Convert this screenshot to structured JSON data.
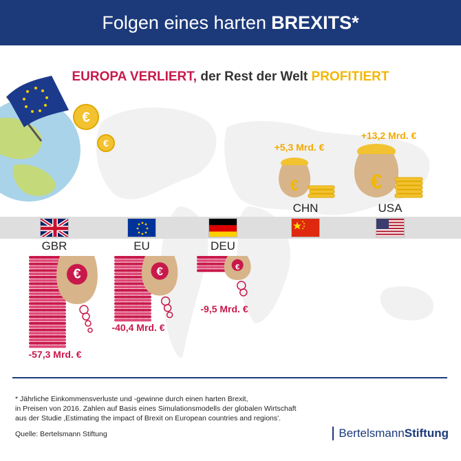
{
  "header": {
    "title_prefix": "Folgen eines harten",
    "title_bold": "BREXITS*"
  },
  "subtitle": {
    "lose": "EUROPA VERLIERT,",
    "middle": " der Rest der Welt ",
    "gain": "PROFITIERT"
  },
  "chart_data": {
    "type": "bar",
    "unit": "Mrd. €",
    "categories": [
      "GBR",
      "EU",
      "DEU",
      "CHN",
      "USA"
    ],
    "values": [
      -57.3,
      -40.4,
      -9.5,
      5.3,
      13.2
    ],
    "labels": [
      "-57,3 Mrd. €",
      "-40,4 Mrd. €",
      "-9,5 Mrd. €",
      "+5,3 Mrd. €",
      "+13,2 Mrd. €"
    ]
  },
  "colors": {
    "header": "#1c3a7a",
    "loss": "#c8194b",
    "gain": "#f2b705",
    "band": "#dedede",
    "sack": "#d7b48a"
  },
  "icons": [
    "eu-flag-icon",
    "globe-icon",
    "euro-coin-icon",
    "money-sack-icon",
    "coin-stack-icon"
  ],
  "footnote": {
    "line1": "* Jährliche Einkommensverluste und -gewinne durch einen harten Brexit,",
    "line2": "in Preisen von 2016. Zahlen auf Basis eines Simulationsmodells der globalen Wirtschaft",
    "line3": "aus der Studie ‚Estimating the impact of Brexit on European countries and regions'."
  },
  "source": "Quelle: Bertelsmann Stiftung",
  "logo": {
    "part1": "Bertelsmann",
    "part2": "Stiftung"
  }
}
